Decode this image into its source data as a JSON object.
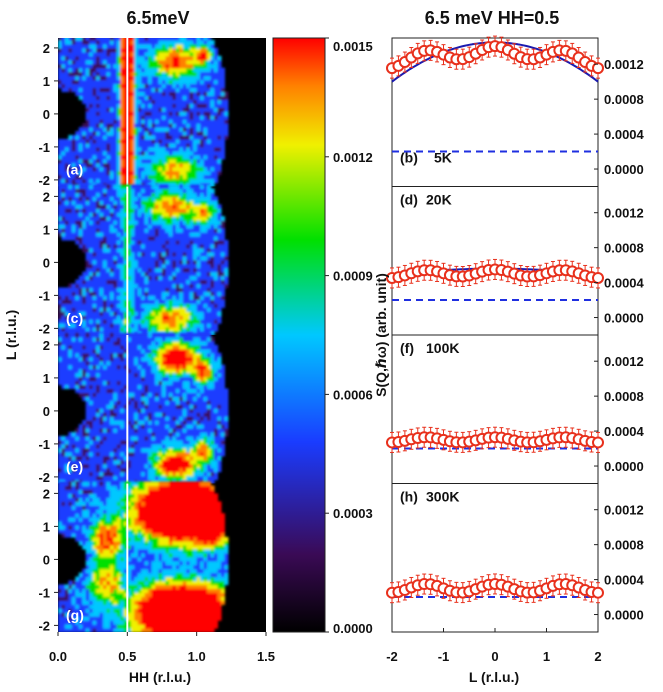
{
  "chart_data": [
    {
      "type": "heatmap",
      "title": "6.5meV",
      "xlabel": "HH (r.l.u.)",
      "ylabel": "L (r.l.u.)",
      "xlim": [
        0.0,
        1.5
      ],
      "ylim": [
        -2.2,
        2.3
      ],
      "x_ticks": [
        "0.0",
        "0.5",
        "1.0",
        "1.5"
      ],
      "y_ticks": [
        "2",
        "1",
        "0",
        "-1",
        "-2"
      ],
      "panels": [
        {
          "label": "(a)"
        },
        {
          "label": "(c)"
        },
        {
          "label": "(e)"
        },
        {
          "label": "(g)"
        }
      ],
      "colorbar": {
        "ticks": [
          "0.0015",
          "0.0012",
          "0.0009",
          "0.0006",
          "0.0003",
          "0.0000"
        ],
        "range": [
          0,
          0.0015
        ]
      }
    },
    {
      "type": "scatter",
      "title": "6.5 meV HH=0.5",
      "xlabel": "L (r.l.u.)",
      "ylabel": "S(Q,ℏω) (arb. unit)",
      "xlim": [
        -2,
        2
      ],
      "ylim": [
        -0.0002,
        0.0015
      ],
      "x_ticks": [
        "-2",
        "-1",
        "0",
        "1",
        "2"
      ],
      "y_ticks": [
        "0.0012",
        "0.0008",
        "0.0004",
        "0.0000"
      ],
      "panels": [
        {
          "label": "(b)",
          "temp": "5K",
          "background": 0.0002,
          "base": 0.00127,
          "amp": 7e-05,
          "fit": true,
          "fit_amp": 0.00045,
          "fit_center": 0.00145
        },
        {
          "label": "(d)",
          "temp": "20K",
          "background": 0.0002,
          "base": 0.0005,
          "amp": 4e-05,
          "fit": true,
          "fit_amp": 7e-05,
          "fit_center": 0.00056
        },
        {
          "label": "(f)",
          "temp": "100K",
          "background": 0.0002,
          "base": 0.0003,
          "amp": 3e-05,
          "fit": false
        },
        {
          "label": "(h)",
          "temp": "300K",
          "background": 0.0002,
          "base": 0.0003,
          "amp": 5e-05,
          "fit": false
        }
      ]
    }
  ]
}
